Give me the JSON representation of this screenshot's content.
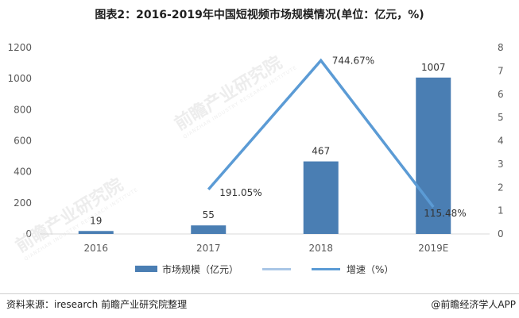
{
  "title": "图表2：2016-2019年中国短视频市场规模情况(单位：亿元，%)",
  "watermark": {
    "text": "前瞻产业研究院",
    "subtext": "QIANZHAN INDUSTRY RESEARCH INSTITUTE"
  },
  "footer": {
    "source": "资料来源：iresearch 前瞻产业研究院整理",
    "brand": "@前瞻经济学人APP"
  },
  "colors": {
    "bar": "#4a7eb3",
    "line": "#5b9bd5",
    "legend_line_light": "#a9c6e6",
    "axis": "#d9d9d9",
    "tick_text": "#595959"
  },
  "chart_data": {
    "type": "bar",
    "title": "图表2：2016-2019年中国短视频市场规模情况(单位：亿元，%)",
    "categories": [
      "2016",
      "2017",
      "2018",
      "2019E"
    ],
    "series": [
      {
        "name": "市场规模（亿元）",
        "type": "bar",
        "axis": "left",
        "values": [
          19,
          55,
          467,
          1007
        ],
        "labels": [
          "19",
          "55",
          "467",
          "1007"
        ]
      },
      {
        "name": "增速（%）",
        "type": "line",
        "axis": "right",
        "values": [
          null,
          1.9105,
          7.4467,
          1.1548
        ],
        "labels": [
          "",
          "191.05%",
          "744.67%",
          "115.48%"
        ]
      }
    ],
    "legend": [
      {
        "label": "市场规模（亿元）",
        "kind": "bar"
      },
      {
        "label": "",
        "kind": "line-light"
      },
      {
        "label": "增速（%）",
        "kind": "line"
      }
    ],
    "y_left": {
      "ylim": [
        0,
        1200
      ],
      "ticks": [
        "0",
        "200",
        "400",
        "600",
        "800",
        "1000",
        "1200"
      ]
    },
    "y_right": {
      "ylim": [
        0,
        8
      ],
      "ticks": [
        "0",
        "1",
        "2",
        "3",
        "4",
        "5",
        "6",
        "7",
        "8"
      ]
    },
    "grid": false,
    "legend_position": "bottom"
  }
}
